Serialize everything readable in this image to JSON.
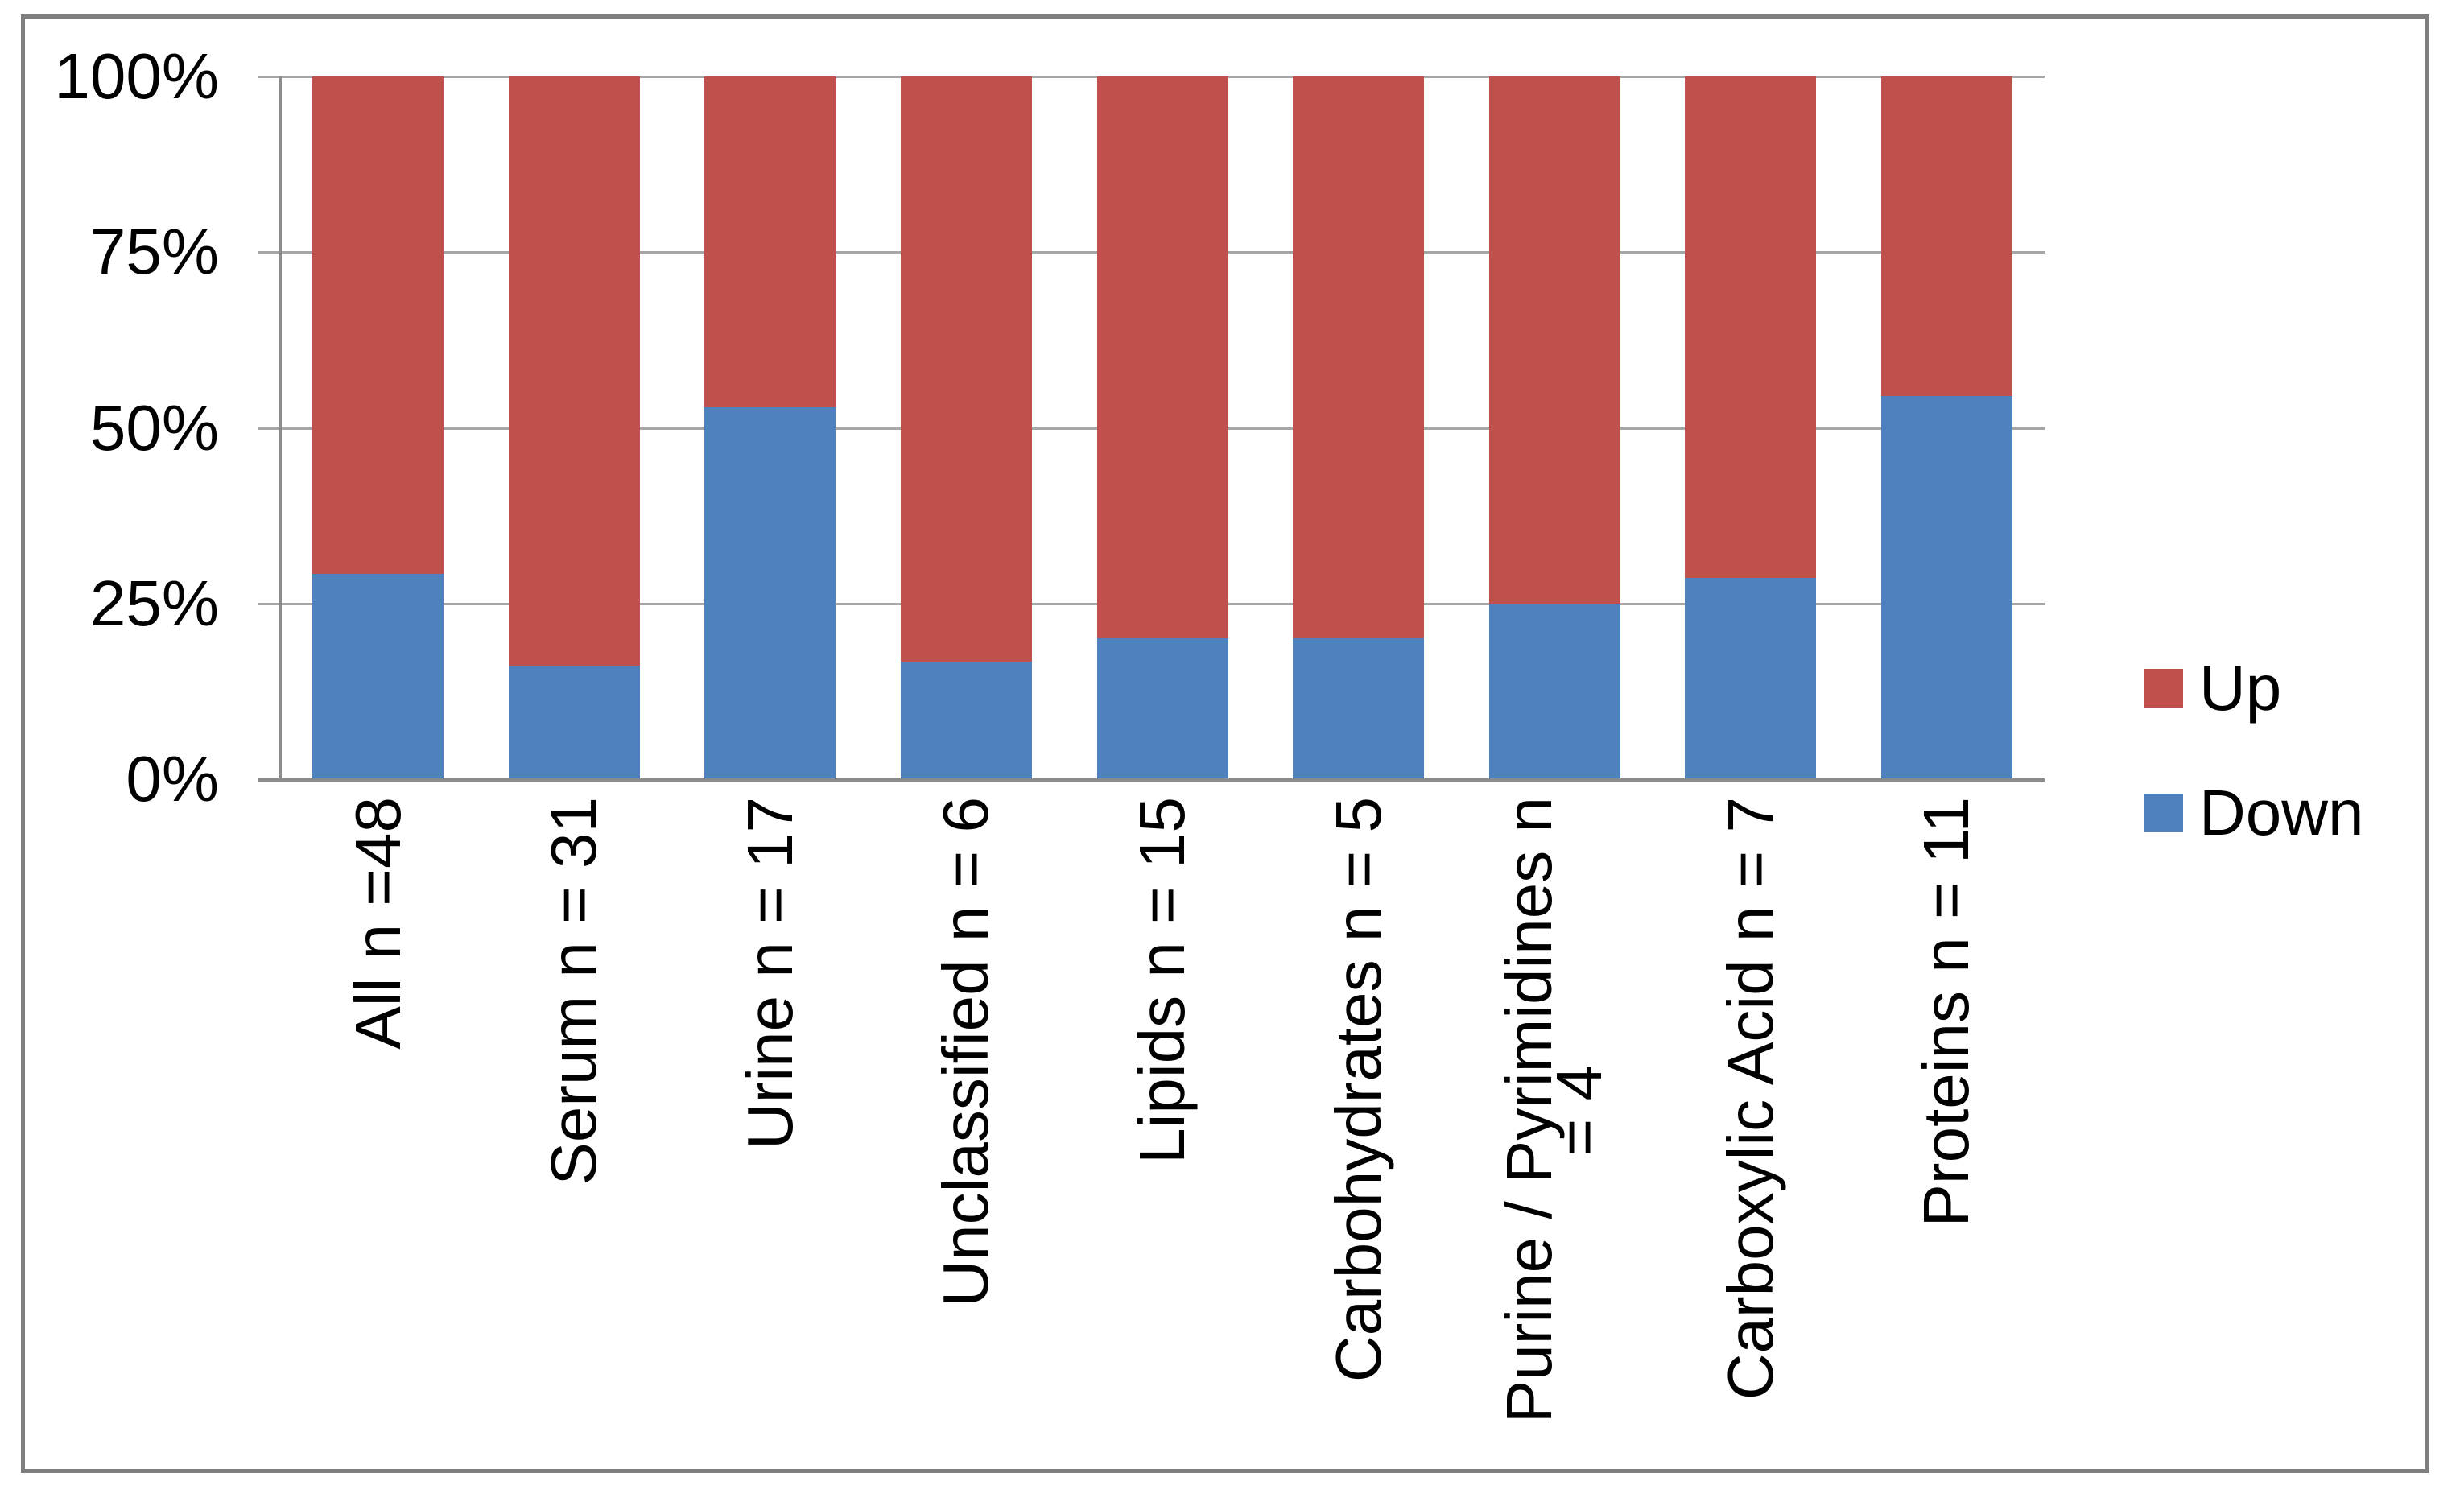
{
  "figure": {
    "background": "#ffffff",
    "border_color": "#7f7f7f"
  },
  "legend": {
    "up_label": "Up",
    "down_label": "Down"
  },
  "chart_data": {
    "type": "bar",
    "subtype": "100-percent-stacked-column",
    "title": "",
    "xlabel": "",
    "ylabel": "",
    "ylim": [
      0,
      100
    ],
    "grid": true,
    "legend_position": "middle-right",
    "y_ticks": [
      "100%",
      "75%",
      "50%",
      "25%",
      "0%"
    ],
    "categories": [
      "All n =48",
      "Serum n = 31",
      "Urine n = 17",
      "Unclassified n = 6",
      "Lipids n = 15",
      "Carbohydrates n = 5",
      "Purine / Pyrimidines n = 4",
      "Carboxylic Acid n = 7",
      "Proteins n = 11"
    ],
    "category_label_lines": [
      [
        "All n =48"
      ],
      [
        "Serum n = 31"
      ],
      [
        "Urine n = 17"
      ],
      [
        "Unclassified n = 6"
      ],
      [
        "Lipids n = 15"
      ],
      [
        "Carbohydrates n = 5"
      ],
      [
        "Purine / Pyrimidines n",
        "= 4"
      ],
      [
        "Carboxylic Acid n = 7"
      ],
      [
        "Proteins n = 11"
      ]
    ],
    "stack_order_bottom_to_top": [
      "Down",
      "Up"
    ],
    "series": [
      {
        "name": "Up",
        "color": "#C0504D",
        "values": [
          70.8,
          83.9,
          47.1,
          83.3,
          80.0,
          80.0,
          75.0,
          71.4,
          45.5
        ]
      },
      {
        "name": "Down",
        "color": "#4F81BD",
        "values": [
          29.2,
          16.1,
          52.9,
          16.7,
          20.0,
          20.0,
          25.0,
          28.6,
          54.5
        ]
      }
    ],
    "colors": {
      "up": "#C0504D",
      "down": "#4F81BD",
      "gridline": "#a6a6a6",
      "axis": "#8c8c8c",
      "text": "#000000"
    }
  }
}
